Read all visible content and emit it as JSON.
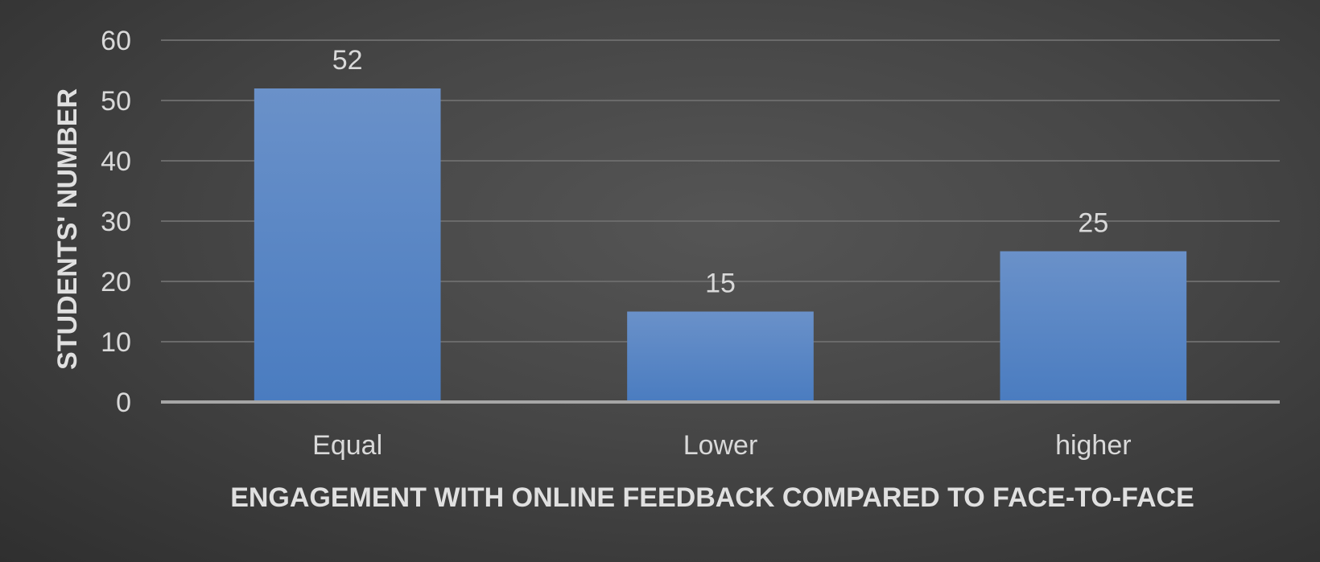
{
  "chart_data": {
    "type": "bar",
    "categories": [
      "Equal",
      "Lower",
      "higher"
    ],
    "values": [
      52,
      15,
      25
    ],
    "title": "",
    "xlabel": "ENGAGEMENT WITH ONLINE FEEDBACK COMPARED TO FACE-TO-FACE",
    "ylabel": "STUDENTS' NUMBER",
    "ylim": [
      0,
      60
    ],
    "yticks": [
      0,
      10,
      20,
      30,
      40,
      50,
      60
    ],
    "grid": true,
    "legend": "none",
    "bar_color": "#5b86c8"
  }
}
